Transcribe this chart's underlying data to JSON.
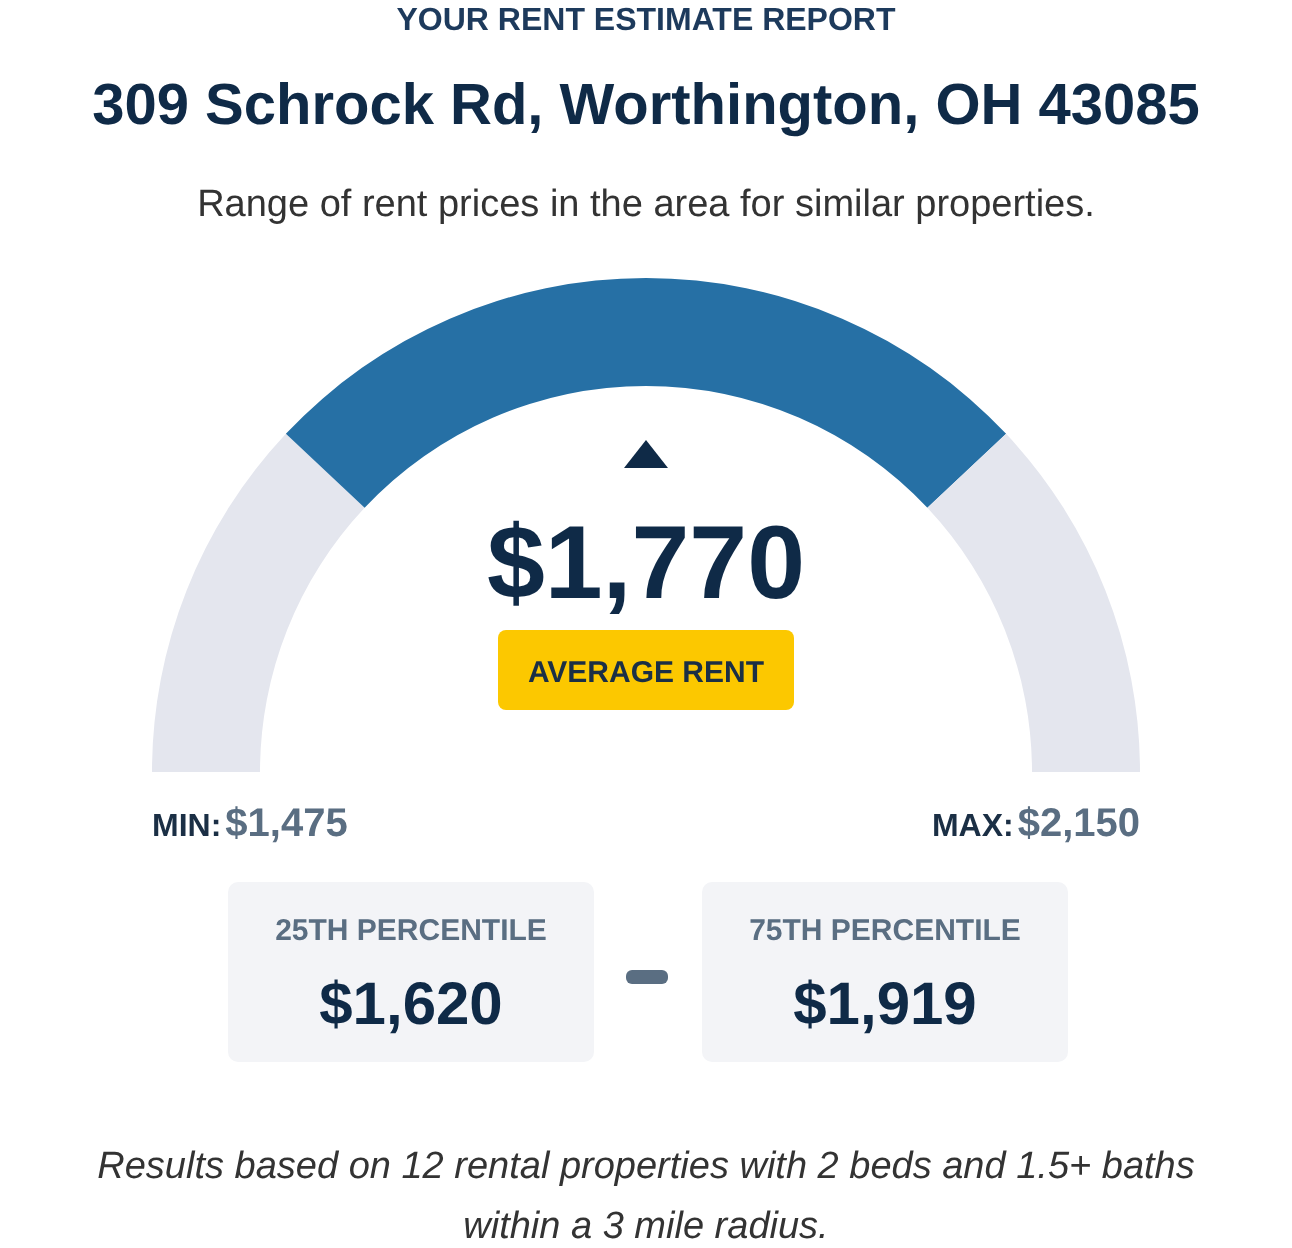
{
  "chart_data": {
    "type": "donut",
    "title": "309 Schrock Rd, Worthington, OH 43085",
    "subtitle": "Range of rent prices in the area for similar properties.",
    "categories": [
      null,
      null,
      null
    ],
    "values": [
      24,
      52,
      24
    ],
    "colors": [
      "#e4e6ee",
      "#2670a5",
      "#e4e6ee"
    ],
    "annotations": [
      "YOUR RENT ESTIMATE REPORT",
      "$1,770",
      "AVERAGE RENT",
      "MIN:",
      "$1,475",
      "MAX:",
      "$2,150",
      "25TH PERCENTILE",
      "$1,620",
      "75TH PERCENTILE",
      "$1,919",
      "Results based on 12 rental properties with 2 beds and 1.5+ baths within a 3 mile radius."
    ]
  }
}
